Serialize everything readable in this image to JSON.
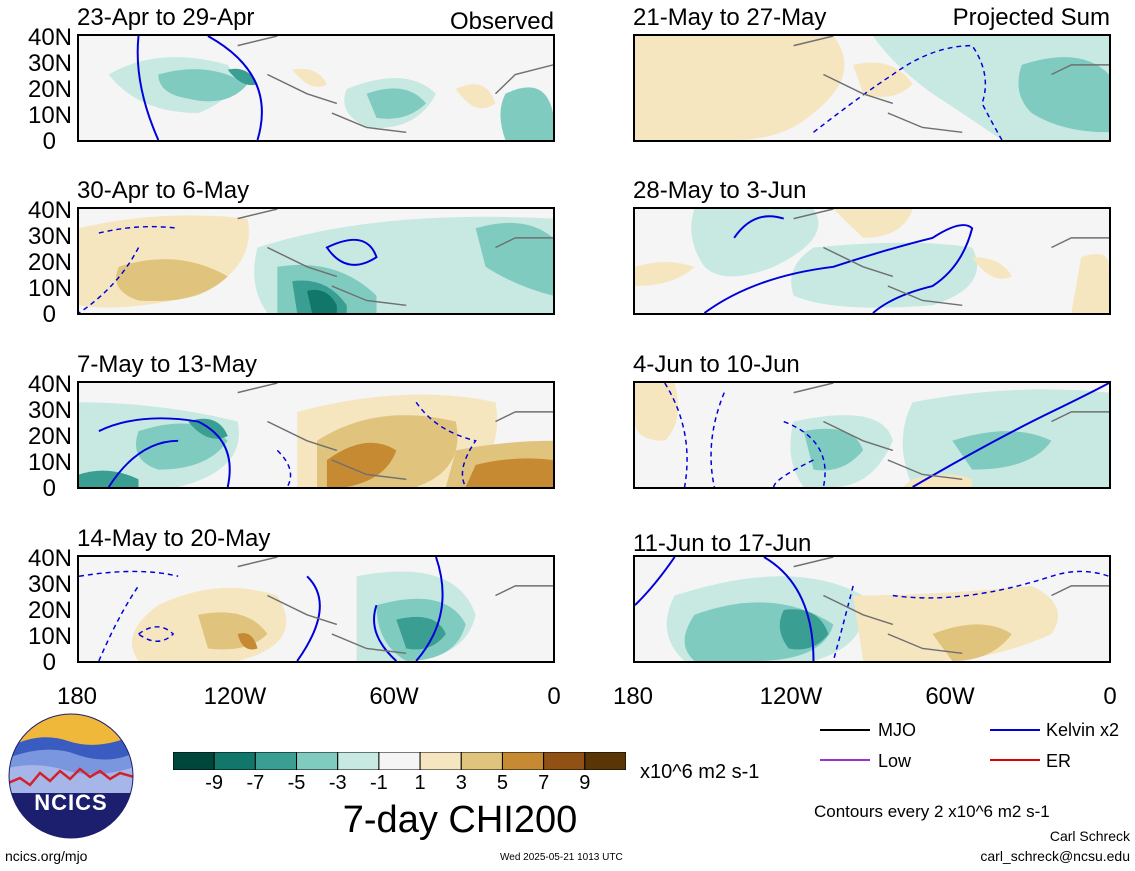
{
  "panels": {
    "observed_label": "Observed",
    "projected_label": "Projected Sum",
    "left": [
      {
        "title": "23-Apr to 29-Apr"
      },
      {
        "title": "30-Apr to 6-May"
      },
      {
        "title": "7-May to 13-May"
      },
      {
        "title": "14-May to 20-May"
      }
    ],
    "right": [
      {
        "title": "21-May to 27-May"
      },
      {
        "title": "28-May to 3-Jun"
      },
      {
        "title": "4-Jun to 10-Jun"
      },
      {
        "title": "11-Jun to 17-Jun"
      }
    ],
    "lat_ticks": [
      "40N",
      "30N",
      "20N",
      "10N",
      "0"
    ],
    "lon_ticks": [
      "180",
      "120W",
      "60W",
      "0"
    ]
  },
  "colorbar": {
    "colors": [
      "#00473b",
      "#11776a",
      "#3a9e92",
      "#80cbc0",
      "#c7e9e2",
      "#f5f5f5",
      "#f6e6c0",
      "#e0c47e",
      "#c68a33",
      "#8f5114",
      "#5a3606"
    ],
    "labels": [
      "-9",
      "-7",
      "-5",
      "-3",
      "-1",
      "1",
      "3",
      "5",
      "7",
      "9"
    ],
    "units": "x10^6 m2 s-1",
    "title": "7-day CHI200"
  },
  "legend": {
    "items": [
      {
        "label": "MJO",
        "color": "#000000"
      },
      {
        "label": "Kelvin x2",
        "color": "#0000dd"
      },
      {
        "label": "Low",
        "color": "#9933cc"
      },
      {
        "label": "ER",
        "color": "#dd0000"
      }
    ],
    "contour_note": "Contours every 2 x10^6 m2 s-1"
  },
  "logo": {
    "text": "NCICS"
  },
  "footer": {
    "url": "ncics.org/mjo",
    "timestamp": "Wed 2025-05-21 1013 UTC",
    "author": "Carl Schreck",
    "email": "carl_schreck@ncsu.edu"
  }
}
